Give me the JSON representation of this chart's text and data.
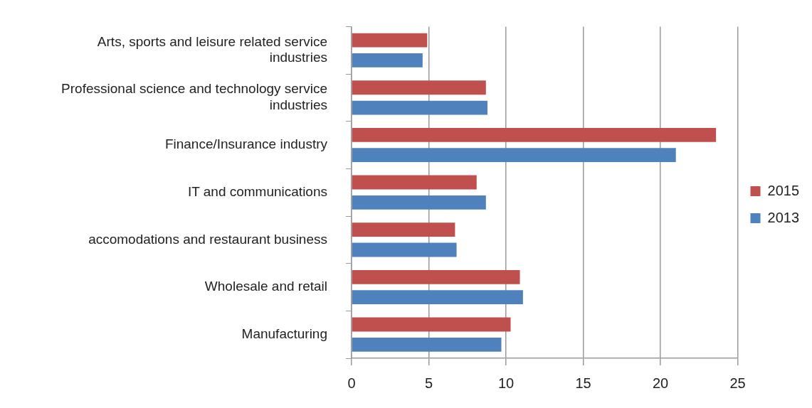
{
  "chart_data": {
    "type": "bar",
    "orientation": "horizontal",
    "categories": [
      "Arts, sports and leisure related service industries",
      "Professional science and technology service industries",
      "Finance/Insurance industry",
      "IT and communications",
      "accomodations and restaurant business",
      "Wholesale and retail",
      "Manufacturing"
    ],
    "series": [
      {
        "name": "2015",
        "color": "#c0504d",
        "values": [
          4.9,
          8.7,
          23.6,
          8.1,
          6.7,
          10.9,
          10.3
        ]
      },
      {
        "name": "2013",
        "color": "#4f81bd",
        "values": [
          4.6,
          8.8,
          21.0,
          8.7,
          6.8,
          11.1,
          9.7
        ]
      }
    ],
    "xlim": [
      0,
      25
    ],
    "xticks": [
      0,
      5,
      10,
      15,
      20,
      25
    ],
    "grid": "x",
    "legend": "right"
  }
}
